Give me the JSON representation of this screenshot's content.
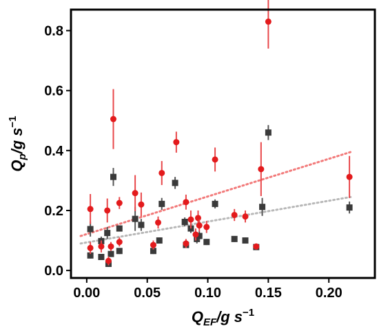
{
  "chart_data": {
    "type": "scatter",
    "title": "",
    "xlabel": {
      "main": "Q",
      "sub": "EF",
      "unit": "/g s",
      "sup": "−1"
    },
    "ylabel": {
      "main": "Q",
      "sub": "p",
      "unit": "/g s",
      "sup": "−1"
    },
    "xlim": [
      -0.013,
      0.238
    ],
    "ylim": [
      -0.025,
      0.87
    ],
    "x_ticks": [
      0.0,
      0.05,
      0.1,
      0.15,
      0.2
    ],
    "x_tick_labels": [
      "0.00",
      "0.05",
      "0.10",
      "0.15",
      "0.20"
    ],
    "y_ticks": [
      0.0,
      0.2,
      0.4,
      0.6,
      0.8
    ],
    "y_tick_labels": [
      "0.0",
      "0.2",
      "0.4",
      "0.6",
      "0.8"
    ],
    "grid": false,
    "legend": "none",
    "series": [
      {
        "marker": "circle",
        "color": "#e31a1c",
        "errorbar_color": "#e8474a",
        "fit_line": {
          "x": [
            -0.005,
            0.218
          ],
          "y": [
            0.115,
            0.395
          ],
          "color": "#f27a7a",
          "style": "dotted"
        },
        "points": [
          {
            "x": 0.003,
            "y": 0.205,
            "err": 0.05
          },
          {
            "x": 0.003,
            "y": 0.075,
            "err": 0.02
          },
          {
            "x": 0.012,
            "y": 0.08,
            "err": 0.02
          },
          {
            "x": 0.017,
            "y": 0.2,
            "err": 0.04
          },
          {
            "x": 0.018,
            "y": 0.032,
            "err": 0.015
          },
          {
            "x": 0.02,
            "y": 0.08,
            "err": 0.015
          },
          {
            "x": 0.022,
            "y": 0.505,
            "err": 0.1
          },
          {
            "x": 0.027,
            "y": 0.225,
            "err": 0.02
          },
          {
            "x": 0.027,
            "y": 0.095,
            "err": 0.015
          },
          {
            "x": 0.04,
            "y": 0.258,
            "err": 0.06
          },
          {
            "x": 0.045,
            "y": 0.22,
            "err": 0.04
          },
          {
            "x": 0.055,
            "y": 0.085,
            "err": 0.015
          },
          {
            "x": 0.059,
            "y": 0.16,
            "err": 0.02
          },
          {
            "x": 0.062,
            "y": 0.325,
            "err": 0.04
          },
          {
            "x": 0.074,
            "y": 0.428,
            "err": 0.035
          },
          {
            "x": 0.082,
            "y": 0.228,
            "err": 0.025
          },
          {
            "x": 0.082,
            "y": 0.09,
            "err": 0.015
          },
          {
            "x": 0.086,
            "y": 0.17,
            "err": 0.03
          },
          {
            "x": 0.09,
            "y": 0.12,
            "err": 0.02
          },
          {
            "x": 0.092,
            "y": 0.175,
            "err": 0.025
          },
          {
            "x": 0.093,
            "y": 0.15,
            "err": 0.02
          },
          {
            "x": 0.099,
            "y": 0.145,
            "err": 0.02
          },
          {
            "x": 0.106,
            "y": 0.37,
            "err": 0.04
          },
          {
            "x": 0.122,
            "y": 0.185,
            "err": 0.02
          },
          {
            "x": 0.131,
            "y": 0.18,
            "err": 0.02
          },
          {
            "x": 0.14,
            "y": 0.08,
            "err": 0.01
          },
          {
            "x": 0.144,
            "y": 0.338,
            "err": 0.09
          },
          {
            "x": 0.15,
            "y": 0.83,
            "err": 0.09
          },
          {
            "x": 0.217,
            "y": 0.312,
            "err": 0.07
          }
        ]
      },
      {
        "marker": "square",
        "color": "#3a3a3a",
        "errorbar_color": "#555555",
        "fit_line": {
          "x": [
            -0.005,
            0.218
          ],
          "y": [
            0.09,
            0.245
          ],
          "color": "#b8b8b8",
          "style": "dotted"
        },
        "points": [
          {
            "x": 0.003,
            "y": 0.138,
            "err": 0.025
          },
          {
            "x": 0.003,
            "y": 0.05,
            "err": 0.01
          },
          {
            "x": 0.012,
            "y": 0.098,
            "err": 0.015
          },
          {
            "x": 0.012,
            "y": 0.045,
            "err": 0.01
          },
          {
            "x": 0.017,
            "y": 0.125,
            "err": 0.02
          },
          {
            "x": 0.018,
            "y": 0.022,
            "err": 0.01
          },
          {
            "x": 0.02,
            "y": 0.055,
            "err": 0.01
          },
          {
            "x": 0.022,
            "y": 0.312,
            "err": 0.03
          },
          {
            "x": 0.027,
            "y": 0.14,
            "err": 0.01
          },
          {
            "x": 0.027,
            "y": 0.065,
            "err": 0.01
          },
          {
            "x": 0.04,
            "y": 0.172,
            "err": 0.04
          },
          {
            "x": 0.045,
            "y": 0.152,
            "err": 0.02
          },
          {
            "x": 0.055,
            "y": 0.065,
            "err": 0.01
          },
          {
            "x": 0.06,
            "y": 0.1,
            "err": 0.01
          },
          {
            "x": 0.062,
            "y": 0.222,
            "err": 0.02
          },
          {
            "x": 0.073,
            "y": 0.292,
            "err": 0.02
          },
          {
            "x": 0.081,
            "y": 0.162,
            "err": 0.015
          },
          {
            "x": 0.082,
            "y": 0.085,
            "err": 0.01
          },
          {
            "x": 0.086,
            "y": 0.14,
            "err": 0.015
          },
          {
            "x": 0.091,
            "y": 0.105,
            "err": 0.015
          },
          {
            "x": 0.093,
            "y": 0.115,
            "err": 0.015
          },
          {
            "x": 0.099,
            "y": 0.095,
            "err": 0.01
          },
          {
            "x": 0.106,
            "y": 0.222,
            "err": 0.015
          },
          {
            "x": 0.122,
            "y": 0.105,
            "err": 0.01
          },
          {
            "x": 0.131,
            "y": 0.1,
            "err": 0.01
          },
          {
            "x": 0.14,
            "y": 0.078,
            "err": 0.01
          },
          {
            "x": 0.145,
            "y": 0.212,
            "err": 0.03
          },
          {
            "x": 0.15,
            "y": 0.46,
            "err": 0.025
          },
          {
            "x": 0.217,
            "y": 0.21,
            "err": 0.02
          }
        ]
      }
    ]
  }
}
